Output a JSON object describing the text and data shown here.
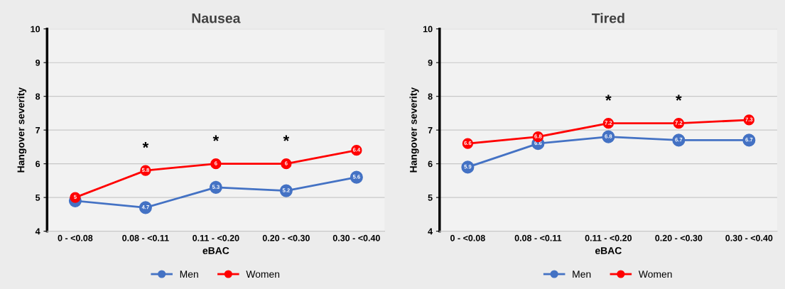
{
  "chart_data": [
    {
      "type": "line",
      "title": "Nausea",
      "xlabel": "eBAC",
      "ylabel": "Hangover severity",
      "categories": [
        "0 - <0.08",
        "0.08 - <0.11",
        "0.11 - <0.20",
        "0.20 - <0.30",
        "0.30 - <0.40"
      ],
      "series": [
        {
          "name": "Men",
          "color": "#4472c4",
          "values": [
            4.9,
            4.7,
            5.3,
            5.2,
            5.6
          ],
          "value_labels": [
            null,
            "4.7",
            "5.3",
            "5.2",
            "5.6"
          ]
        },
        {
          "name": "Women",
          "color": "#ff0000",
          "values": [
            5,
            5.8,
            6,
            6,
            6.4
          ],
          "value_labels": [
            "5",
            "5.8",
            "6",
            "6",
            "6.4"
          ]
        }
      ],
      "ylim": [
        4,
        10
      ],
      "yticks": [
        4,
        5,
        6,
        7,
        8,
        9,
        10
      ],
      "grid": "y",
      "legend": "bottom",
      "marker": "circle",
      "line_style": "solid",
      "annotations": [
        "*",
        "*",
        "*"
      ]
    },
    {
      "type": "line",
      "title": "Tired",
      "xlabel": "eBAC",
      "ylabel": "Hangover severity",
      "categories": [
        "0 - <0.08",
        "0.08 - <0.11",
        "0.11 - <0.20",
        "0.20 - <0.30",
        "0.30 - <0.40"
      ],
      "series": [
        {
          "name": "Men",
          "color": "#4472c4",
          "values": [
            5.9,
            6.6,
            6.8,
            6.7,
            6.7
          ],
          "value_labels": [
            "5.9",
            "6.6",
            "6.8",
            "6.7",
            "6.7"
          ]
        },
        {
          "name": "Women",
          "color": "#ff0000",
          "values": [
            6.6,
            6.8,
            7.2,
            7.2,
            7.3
          ],
          "value_labels": [
            "6.6",
            "6.8",
            "7.2",
            "7.2",
            "7.3"
          ]
        }
      ],
      "ylim": [
        4,
        10
      ],
      "yticks": [
        4,
        5,
        6,
        7,
        8,
        9,
        10
      ],
      "grid": "y",
      "legend": "bottom",
      "marker": "circle",
      "line_style": "solid",
      "annotations": [
        "*",
        "*"
      ]
    }
  ]
}
